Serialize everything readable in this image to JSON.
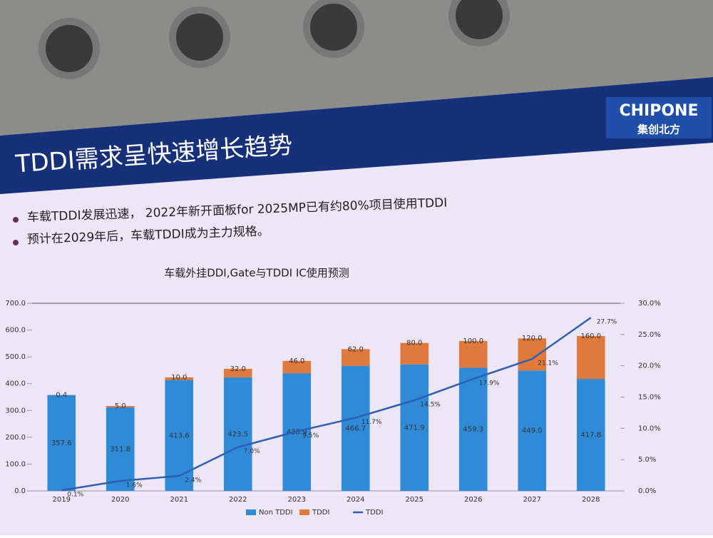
{
  "logo": {
    "name": "CHIPONE",
    "subtitle": "集创北方"
  },
  "slide": {
    "title": "TDDI需求呈快速增长趋势",
    "bullets": [
      "车载TDDI发展迅速，  2022年新开面板for 2025MP已有约80%项目使用TDDI",
      "预计在2029年后，车载TDDI成为主力规格。"
    ]
  },
  "chart_data": {
    "type": "bar",
    "title": "车载外挂DDI,Gate与TDDI IC使用预测",
    "categories": [
      "2019",
      "2020",
      "2021",
      "2022",
      "2023",
      "2024",
      "2025",
      "2026",
      "2027",
      "2028"
    ],
    "series": [
      {
        "name": "Non TDDI",
        "color": "#2f8ad8",
        "values": [
          357.6,
          311.8,
          413.6,
          423.5,
          438.9,
          466.7,
          471.9,
          459.3,
          449.0,
          417.8
        ],
        "value_labels": [
          "357.6",
          "311.8",
          "413.6",
          "423.5",
          "438.9",
          "466.7",
          "471.9",
          "459.3",
          "449.0",
          "417.8"
        ]
      },
      {
        "name": "TDDI",
        "color": "#e07a3c",
        "values": [
          0.4,
          5.0,
          10.0,
          32.0,
          46.0,
          62.0,
          80.0,
          100.0,
          120.0,
          160.0
        ],
        "value_labels": [
          "0.4",
          "5.0",
          "10.0",
          "32.0",
          "46.0",
          "62.0",
          "80.0",
          "100.0",
          "120.0",
          "160.0"
        ]
      },
      {
        "name": "TDDI",
        "type": "line",
        "axis": "y2",
        "color": "#2f5fb3",
        "values": [
          0.1,
          1.6,
          2.4,
          7.0,
          9.5,
          11.7,
          14.5,
          17.9,
          21.1,
          27.7
        ],
        "value_labels": [
          "0.1%",
          "1.6%",
          "2.4%",
          "7.0%",
          "9.5%",
          "11.7%",
          "14.5%",
          "17.9%",
          "21.1%",
          "27.7%"
        ]
      }
    ],
    "ylim": [
      0,
      700
    ],
    "yticks": [
      {
        "value": 0,
        "label": "0.0"
      },
      {
        "value": 100,
        "label": "100.0"
      },
      {
        "value": 200,
        "label": "200.0"
      },
      {
        "value": 300,
        "label": "300.0"
      },
      {
        "value": 400,
        "label": "400.0"
      },
      {
        "value": 500,
        "label": "500.0"
      },
      {
        "value": 600,
        "label": "600.0"
      },
      {
        "value": 700,
        "label": "700.0"
      }
    ],
    "y2lim": [
      0,
      30
    ],
    "y2ticks": [
      {
        "value": 0,
        "label": "0.0%"
      },
      {
        "value": 5,
        "label": "5.0%"
      },
      {
        "value": 10,
        "label": "10.0%"
      },
      {
        "value": 15,
        "label": "15.0%"
      },
      {
        "value": 20,
        "label": "20.0%"
      },
      {
        "value": 25,
        "label": "25.0%"
      },
      {
        "value": 30,
        "label": "30.0%"
      }
    ],
    "legend": "bottom"
  }
}
